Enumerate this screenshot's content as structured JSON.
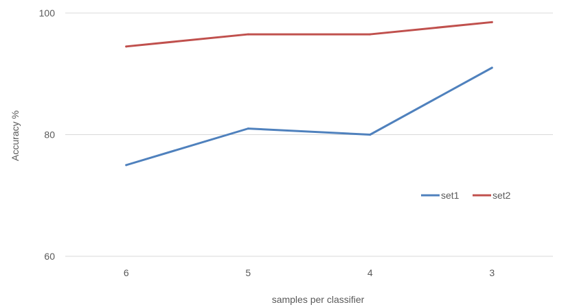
{
  "chart_data": {
    "type": "line",
    "title": "",
    "xlabel": "samples per classifier",
    "ylabel": "Accuracy %",
    "categories": [
      "6",
      "5",
      "4",
      "3"
    ],
    "ylim": [
      60,
      100
    ],
    "yticks": [
      60,
      80,
      100
    ],
    "grid": true,
    "legend_position": "right",
    "series": [
      {
        "name": "set1",
        "color": "#4F81BD",
        "values": [
          75,
          81,
          80,
          91
        ]
      },
      {
        "name": "set2",
        "color": "#C0504D",
        "values": [
          94.5,
          96.5,
          96.5,
          98.5
        ]
      }
    ]
  }
}
